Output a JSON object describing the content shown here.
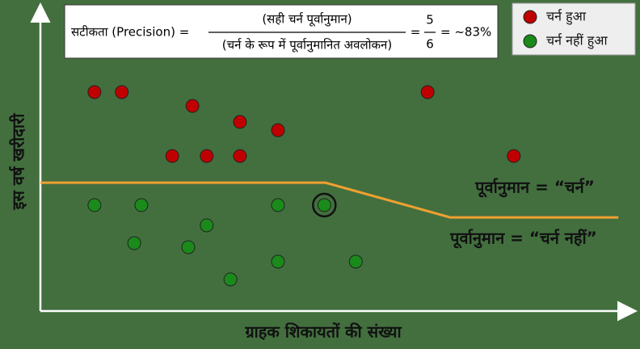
{
  "chart_data": {
    "type": "scatter",
    "formula": {
      "lhs": "सटीकता (Precision) =",
      "numerator": "(सही चर्न पूर्वानुमान)",
      "denominator": "(चर्न के रूप में पूर्वानुमानित अवलोकन)",
      "equals": "=",
      "num": 5,
      "den": 6,
      "result": "= ~83%"
    },
    "x_label": "ग्राहक शिकायतों की संख्या",
    "y_label": "इस वर्ष खरीदारी",
    "xlim": [
      0,
      100
    ],
    "ylim": [
      0,
      100
    ],
    "legend": "upper right",
    "series": [
      {
        "name": "चर्न हुआ",
        "color": "#c00000",
        "x": [
          9.1,
          13.7,
          25.6,
          33.6,
          40,
          22.2,
          28,
          33.6,
          65.2,
          79.7
        ],
        "y": [
          71.3,
          71.3,
          66.8,
          61.6,
          58.9,
          50.5,
          50.5,
          50.5,
          71.3,
          50.5
        ]
      },
      {
        "name": "चर्न नहीं हुआ",
        "color": "#1a8a1a",
        "highlight_index": 4,
        "x": [
          9.1,
          17,
          28,
          40,
          47.8,
          15.8,
          24.9,
          40,
          53.1,
          32
        ],
        "y": [
          34.5,
          34.5,
          27.9,
          34.5,
          34.5,
          22.1,
          20.8,
          16.1,
          16.1,
          10.3
        ]
      }
    ],
    "boundary": {
      "color": "#f0a030",
      "x": [
        0,
        48,
        69,
        97.3
      ],
      "y": [
        41.8,
        41.8,
        30.5,
        30.5
      ]
    },
    "annotations": [
      "पूर्वानुमान = “चर्न”",
      "पूर्वानुमान = “चर्न नहीं”"
    ]
  }
}
